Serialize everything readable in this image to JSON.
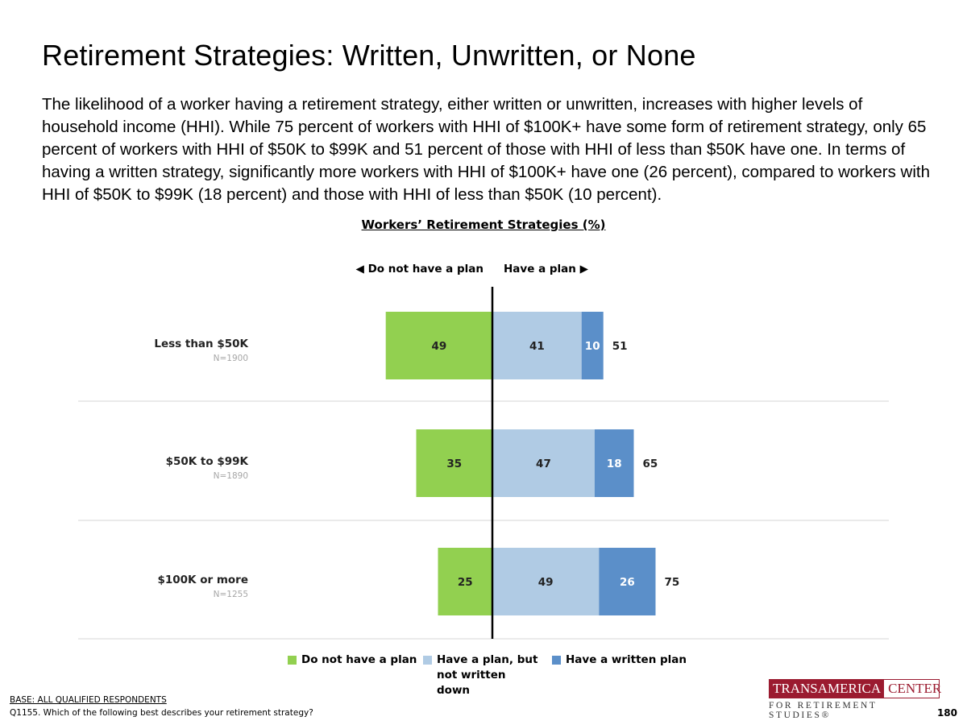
{
  "header": {
    "title": "Retirement Strategies: Written, Unwritten, or None",
    "description": "The likelihood of a worker having a retirement strategy, either written or unwritten, increases with higher levels of household income (HHI). While 75 percent of workers with HHI of $100K+ have some form of retirement strategy, only 65 percent of workers with HHI of $50K to $99K and 51 percent of those with HHI of less than $50K have one. In terms of having a written strategy, significantly more workers with HHI of $100K+ have one (26 percent), compared to workers with HHI of $50K to $99K (18 percent) and those with HHI of less than $50K (10 percent)."
  },
  "direction_labels": {
    "left": "◀ Do not have a plan",
    "right": "Have a plan ▶"
  },
  "chart_data": {
    "type": "bar",
    "orientation": "horizontal-diverging",
    "title": "Workers’ Retirement Strategies (%)",
    "categories": [
      "Less than $50K",
      "$50K to $99K",
      "$100K or more"
    ],
    "sample_sizes": [
      "N=1900",
      "N=1890",
      "N=1255"
    ],
    "series": [
      {
        "name": "Do not have a plan",
        "values": [
          49,
          35,
          25
        ],
        "color": "#92d050",
        "side": "left"
      },
      {
        "name": "Have a plan, but not written down",
        "values": [
          41,
          47,
          49
        ],
        "color": "#b0cbe4",
        "side": "right"
      },
      {
        "name": "Have a written plan",
        "values": [
          10,
          18,
          26
        ],
        "color": "#5b8fc9",
        "side": "right"
      }
    ],
    "totals": [
      51,
      65,
      75
    ],
    "legend_position": "bottom",
    "grid": false
  },
  "footer": {
    "base": "BASE: ALL QUALIFIED RESPONDENTS",
    "question": "Q1155. Which of the following best describes your retirement strategy?",
    "page_number": "180"
  },
  "logo": {
    "part1": "TRANSAMERICA",
    "part2": "CENTER",
    "subtitle": "FOR RETIREMENT STUDIES®"
  }
}
